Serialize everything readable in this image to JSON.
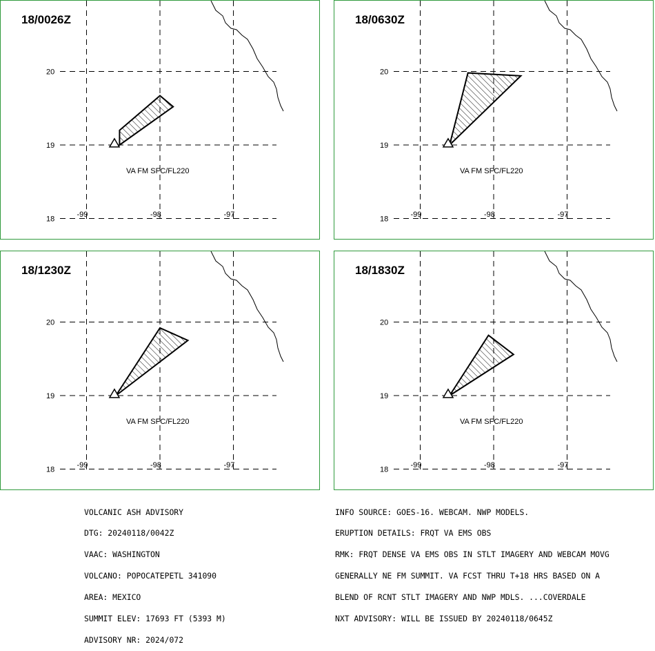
{
  "panels": [
    {
      "time": "18/0026Z",
      "label": "VA FM SFC/FL220",
      "plume": [
        [
          -98.55,
          19.2
        ],
        [
          -98.0,
          19.67
        ],
        [
          -97.82,
          19.52
        ],
        [
          -98.55,
          19.0
        ]
      ]
    },
    {
      "time": "18/0630Z",
      "label": "VA FM SFC/FL220",
      "plume": [
        [
          -98.6,
          19.0
        ],
        [
          -98.35,
          19.98
        ],
        [
          -97.63,
          19.94
        ]
      ]
    },
    {
      "time": "18/1230Z",
      "label": "VA FM SFC/FL220",
      "plume": [
        [
          -98.6,
          19.0
        ],
        [
          -98.0,
          19.92
        ],
        [
          -97.62,
          19.75
        ]
      ]
    },
    {
      "time": "18/1830Z",
      "label": "VA FM SFC/FL220",
      "plume": [
        [
          -98.6,
          19.0
        ],
        [
          -98.07,
          19.82
        ],
        [
          -97.73,
          19.56
        ]
      ]
    }
  ],
  "volcano": {
    "lon": -98.62,
    "lat": 19.02
  },
  "axes": {
    "lat_ticks": [
      "20",
      "19",
      "18"
    ],
    "lon_ticks": [
      "-99",
      "-98",
      "-97"
    ],
    "lat_values": [
      20,
      19,
      18
    ],
    "lon_values": [
      -99,
      -98,
      -97
    ]
  },
  "left_info": [
    "VOLCANIC ASH ADVISORY",
    "DTG: 20240118/0042Z",
    "VAAC: WASHINGTON",
    "VOLCANO: POPOCATEPETL 341090",
    "AREA: MEXICO",
    "SUMMIT ELEV: 17693 FT (5393 M)",
    "ADVISORY NR: 2024/072"
  ],
  "right_info": [
    "INFO SOURCE: GOES-16. WEBCAM. NWP MODELS.",
    "ERUPTION DETAILS: FRQT VA EMS OBS",
    "RMK: FRQT DENSE VA EMS OBS IN STLT IMAGERY AND WEBCAM MOVG",
    "GENERALLY NE FM SUMMIT. VA FCST THRU T+18 HRS BASED ON A",
    "BLEND OF RCNT STLT IMAGERY AND NWP MDLS. ...COVERDALE",
    "NXT ADVISORY: WILL BE ISSUED BY 20240118/0645Z"
  ],
  "colors": {
    "border": "#2f9a3c",
    "lines": "#000000",
    "background": "#ffffff"
  }
}
